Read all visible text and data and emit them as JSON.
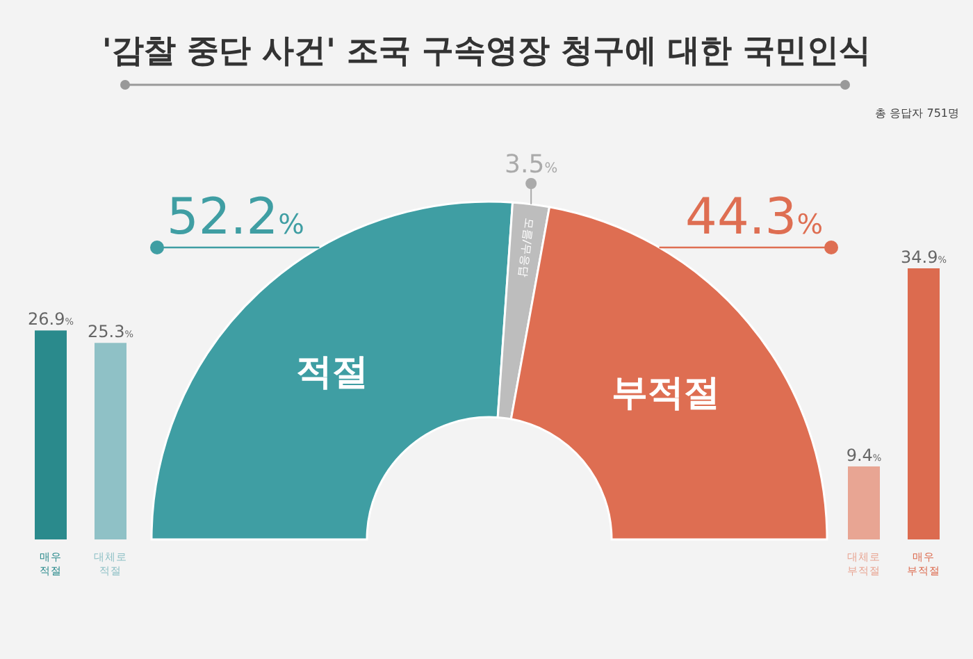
{
  "chart_data": [
    {
      "type": "donut",
      "title": "'감찰 중단 사건' 조국 구속영장 청구에 대한 국민인식",
      "annotations": [
        "총 응답자 751명"
      ],
      "categories": [
        "적절",
        "모름/무응답",
        "부적절"
      ],
      "values": [
        52.2,
        3.5,
        44.3
      ],
      "colors": [
        "#3f9ea3",
        "#bdbdbd",
        "#de6e52"
      ],
      "value_labels": [
        "52.2%",
        "3.5%",
        "44.3%"
      ]
    },
    {
      "type": "bar",
      "categories": [
        "매우 적절",
        "대체로 적절"
      ],
      "values": [
        26.9,
        25.3
      ],
      "colors": [
        "#2a8a8c",
        "#8fc1c6"
      ],
      "value_labels": [
        "26.9%",
        "25.3%"
      ]
    },
    {
      "type": "bar",
      "categories": [
        "대체로 부적절",
        "매우 부적절"
      ],
      "values": [
        9.4,
        34.9
      ],
      "colors": [
        "#e8a593",
        "#dc6b4f"
      ],
      "value_labels": [
        "9.4%",
        "34.9%"
      ]
    }
  ]
}
